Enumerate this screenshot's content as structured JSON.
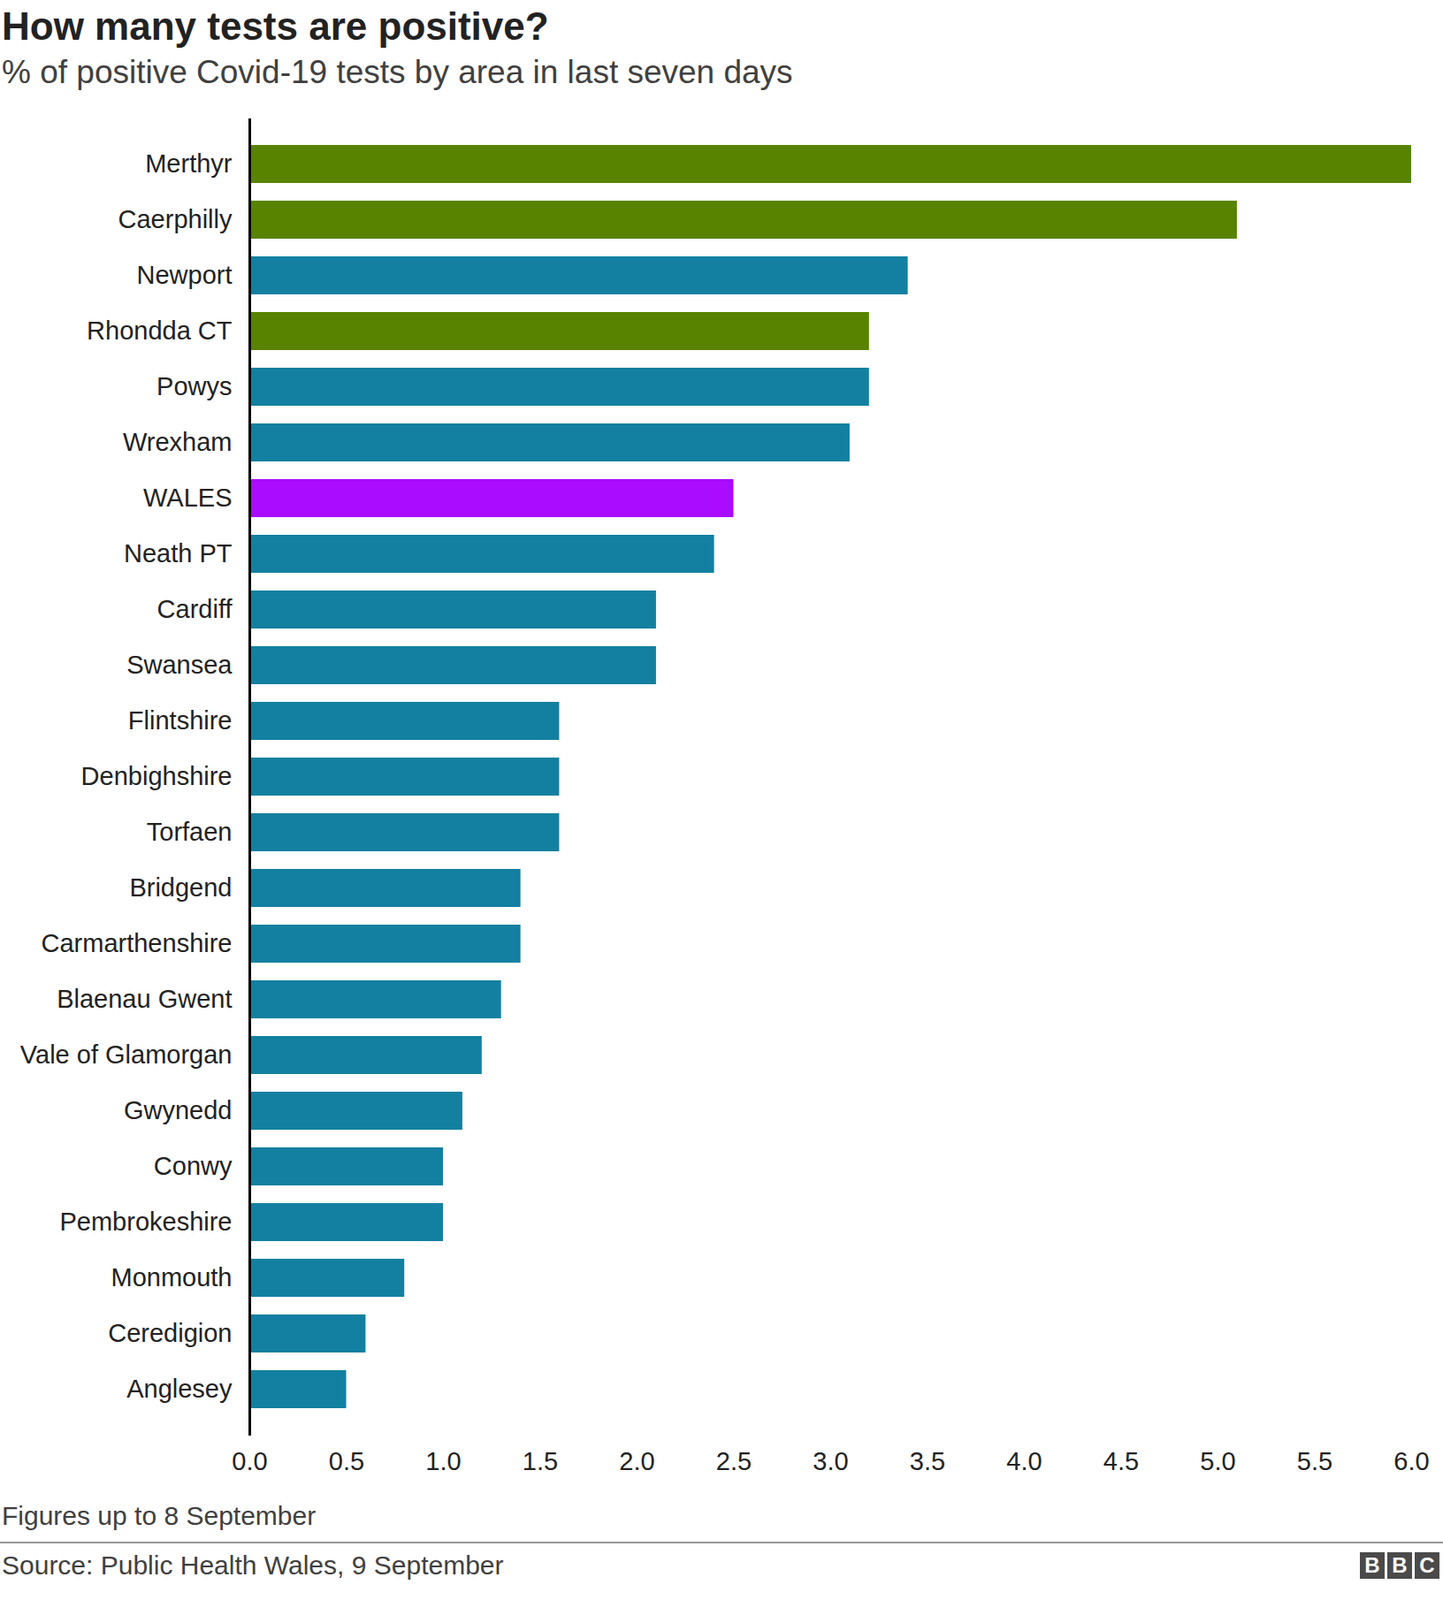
{
  "chart_data": {
    "type": "bar",
    "orientation": "horizontal",
    "title": "How many tests are positive?",
    "subtitle": "% of positive Covid-19 tests by area in last seven days",
    "note": "Figures up to 8 September",
    "source": "Source: Public Health Wales, 9 September",
    "logo": "BBC",
    "categories": [
      "Merthyr",
      "Caerphilly",
      "Newport",
      "Rhondda CT",
      "Powys",
      "Wrexham",
      "WALES",
      "Neath PT",
      "Cardiff",
      "Swansea",
      "Flintshire",
      "Denbighshire",
      "Torfaen",
      "Bridgend",
      "Carmarthenshire",
      "Blaenau Gwent",
      "Vale of Glamorgan",
      "Gwynedd",
      "Conwy",
      "Pembrokeshire",
      "Monmouth",
      "Ceredigion",
      "Anglesey"
    ],
    "values": [
      6.0,
      5.1,
      3.4,
      3.2,
      3.2,
      3.1,
      2.5,
      2.4,
      2.1,
      2.1,
      1.6,
      1.6,
      1.6,
      1.4,
      1.4,
      1.3,
      1.2,
      1.1,
      1.0,
      1.0,
      0.8,
      0.6,
      0.5
    ],
    "colors": [
      "#588300",
      "#588300",
      "#1380a1",
      "#588300",
      "#1380a1",
      "#1380a1",
      "#a90cff",
      "#1380a1",
      "#1380a1",
      "#1380a1",
      "#1380a1",
      "#1380a1",
      "#1380a1",
      "#1380a1",
      "#1380a1",
      "#1380a1",
      "#1380a1",
      "#1380a1",
      "#1380a1",
      "#1380a1",
      "#1380a1",
      "#1380a1",
      "#1380a1"
    ],
    "xlim": [
      0,
      6
    ],
    "xticks": [
      {
        "value": 0,
        "label": "0.0"
      },
      0.5,
      {
        "value": 1,
        "label": "1.0"
      },
      1.5,
      {
        "value": 2,
        "label": "2.0"
      },
      2.5,
      {
        "value": 3,
        "label": "3.0"
      },
      3.5,
      {
        "value": 4,
        "label": "4.0"
      },
      4.5,
      {
        "value": 5,
        "label": "5.0"
      },
      5.5,
      {
        "value": 6,
        "label": "6.0"
      }
    ],
    "grid": false
  }
}
